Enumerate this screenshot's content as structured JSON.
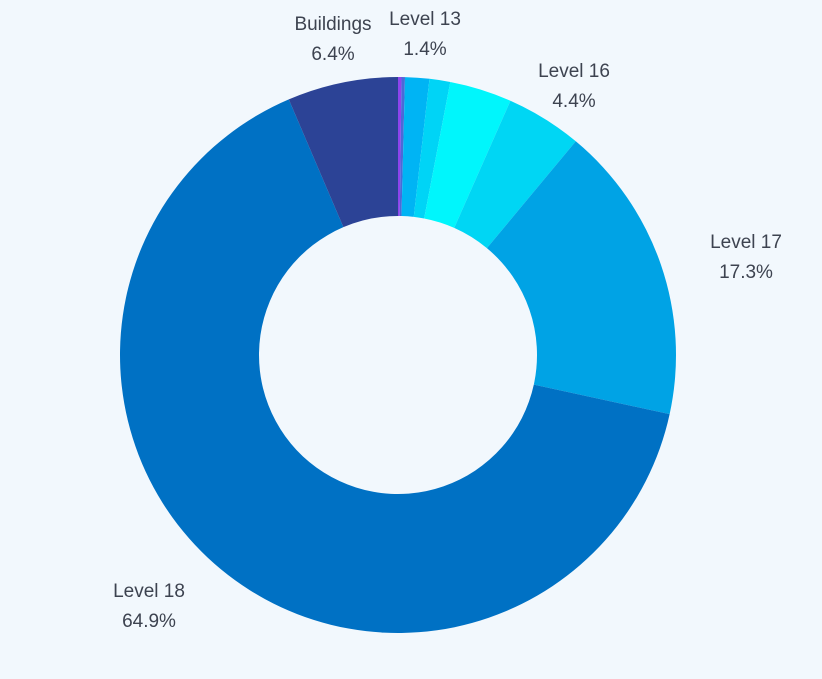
{
  "chart_data": {
    "type": "pie",
    "donut": true,
    "background": "#f2f8fd",
    "slices": [
      {
        "label": "",
        "value": 0.2,
        "color": "#8e44ec"
      },
      {
        "label": "",
        "value": 0.2,
        "color": "#4a6ad8"
      },
      {
        "label": "Level 13",
        "value": 1.4,
        "color": "#00b4f4",
        "display": "1.4%"
      },
      {
        "label": "",
        "value": 1.2,
        "color": "#00d4f6"
      },
      {
        "label": "",
        "value": 3.6,
        "color": "#00f6fc"
      },
      {
        "label": "Level 16",
        "value": 4.4,
        "color": "#00d6f4",
        "display": "4.4%"
      },
      {
        "label": "Level 17",
        "value": 17.3,
        "color": "#00a3e5",
        "display": "17.3%"
      },
      {
        "label": "Level 18",
        "value": 64.9,
        "color": "#0071c4",
        "display": "64.9%"
      },
      {
        "label": "Buildings",
        "value": 6.4,
        "color": "#2c4396",
        "display": "6.4%"
      }
    ]
  }
}
